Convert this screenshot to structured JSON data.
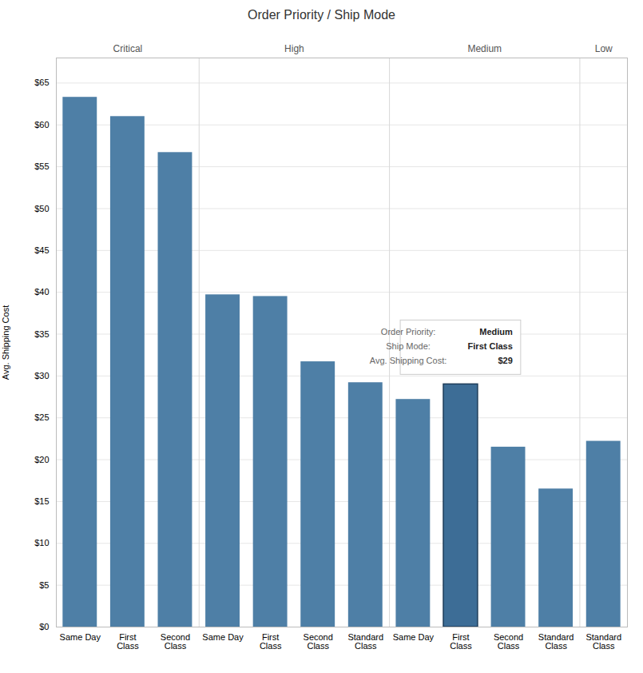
{
  "chart_data": {
    "type": "bar",
    "title": "Order Priority / Ship Mode",
    "ylabel": "Avg. Shipping Cost",
    "categories": [
      "Same Day",
      "First\nClass",
      "Second\nClass",
      "Same Day",
      "First\nClass",
      "Second\nClass",
      "Standard\nClass",
      "Same Day",
      "First\nClass",
      "Second\nClass",
      "Standard\nClass",
      "Standard\nClass"
    ],
    "groups": [
      "Critical",
      "Critical",
      "Critical",
      "High",
      "High",
      "High",
      "High",
      "Medium",
      "Medium",
      "Medium",
      "Medium",
      "Low"
    ],
    "values": [
      63.3,
      61.0,
      56.7,
      39.7,
      39.5,
      31.7,
      29.2,
      27.2,
      29.0,
      21.5,
      16.5,
      22.2
    ],
    "colors": [
      "#4e7fa6",
      "#4e7fa6",
      "#4e7fa6",
      "#4e7fa6",
      "#4e7fa6",
      "#4e7fa6",
      "#4e7fa6",
      "#4e7fa6",
      "#3d6d96",
      "#4e7fa6",
      "#4e7fa6",
      "#4e7fa6"
    ],
    "ylim": [
      0,
      68
    ],
    "yticks": [
      {
        "value": 0,
        "label": "$0"
      },
      {
        "value": 5,
        "label": "$5"
      },
      {
        "value": 10,
        "label": "$10"
      },
      {
        "value": 15,
        "label": "$15"
      },
      {
        "value": 20,
        "label": "$20"
      },
      {
        "value": 25,
        "label": "$25"
      },
      {
        "value": 30,
        "label": "$30"
      },
      {
        "value": 35,
        "label": "$35"
      },
      {
        "value": 40,
        "label": "$40"
      },
      {
        "value": 45,
        "label": "$45"
      },
      {
        "value": 50,
        "label": "$50"
      },
      {
        "value": 55,
        "label": "$55"
      },
      {
        "value": 60,
        "label": "$60"
      },
      {
        "value": 65,
        "label": "$65"
      }
    ],
    "grid": true,
    "annotations": [
      {
        "category_index": 8,
        "lines": [
          [
            "Order Priority:",
            "Medium"
          ],
          [
            "Ship Mode:",
            "First Class"
          ],
          [
            "Avg. Shipping Cost:",
            "$29"
          ]
        ]
      }
    ]
  }
}
